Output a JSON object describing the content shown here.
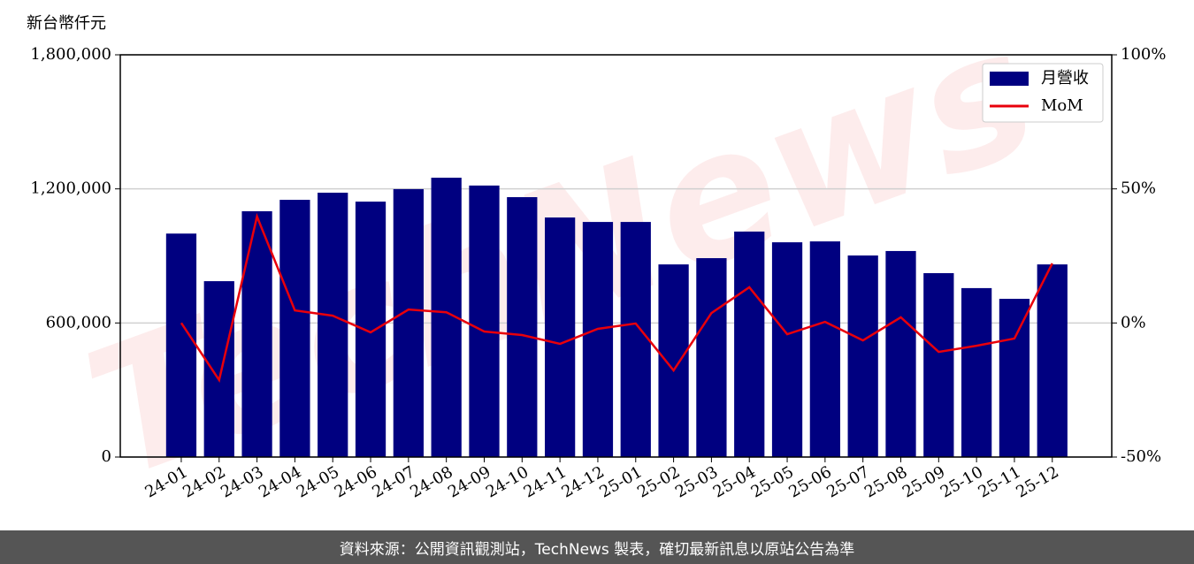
{
  "chart_data": {
    "type": "bar-line",
    "y_label": "新台幣仟元",
    "watermark": "TechNews",
    "footer": "資料來源：公開資訊觀測站，TechNews 製表，確切最新訊息以原站公告為準",
    "categories": [
      "24-01",
      "24-02",
      "24-03",
      "24-04",
      "24-05",
      "24-06",
      "24-07",
      "24-08",
      "24-09",
      "24-10",
      "24-11",
      "24-12",
      "25-01",
      "25-02",
      "25-03",
      "25-04",
      "25-05",
      "25-06",
      "25-07",
      "25-08",
      "25-09",
      "25-10",
      "25-11",
      "25-12"
    ],
    "series": [
      {
        "name": "月營收",
        "type": "bar",
        "color": "#000080",
        "values": [
          1000000,
          787000,
          1100000,
          1151000,
          1183000,
          1143000,
          1199000,
          1250000,
          1215000,
          1163000,
          1072000,
          1052000,
          1052000,
          862000,
          890000,
          1009000,
          961000,
          965000,
          902000,
          922000,
          823000,
          756000,
          708000,
          862000
        ]
      },
      {
        "name": "MoM",
        "type": "line",
        "axis": "y2",
        "color": "#e8000b",
        "values": [
          0,
          -21.3,
          39.7,
          4.7,
          2.7,
          -3.5,
          5,
          4,
          -3.2,
          -4.5,
          -7.8,
          -2.2,
          -0.2,
          -17.7,
          3.7,
          13.3,
          -4.2,
          0.4,
          -6.5,
          2.1,
          -10.8,
          -8.5,
          -5.8,
          22.2
        ]
      }
    ],
    "ylim": [
      0,
      1800000
    ],
    "yticks": [
      {
        "value": 0,
        "label": "0"
      },
      {
        "value": 600000,
        "label": "600,000"
      },
      {
        "value": 1200000,
        "label": "1,200,000"
      },
      {
        "value": 1800000,
        "label": "1,800,000"
      }
    ],
    "y2lim": [
      -50,
      100
    ],
    "y2ticks": [
      {
        "value": -50,
        "label": "-50%"
      },
      {
        "value": 0,
        "label": "0%"
      },
      {
        "value": 50,
        "label": "50%"
      },
      {
        "value": 100,
        "label": "100%"
      }
    ],
    "grid": true,
    "legend": "upper right"
  }
}
